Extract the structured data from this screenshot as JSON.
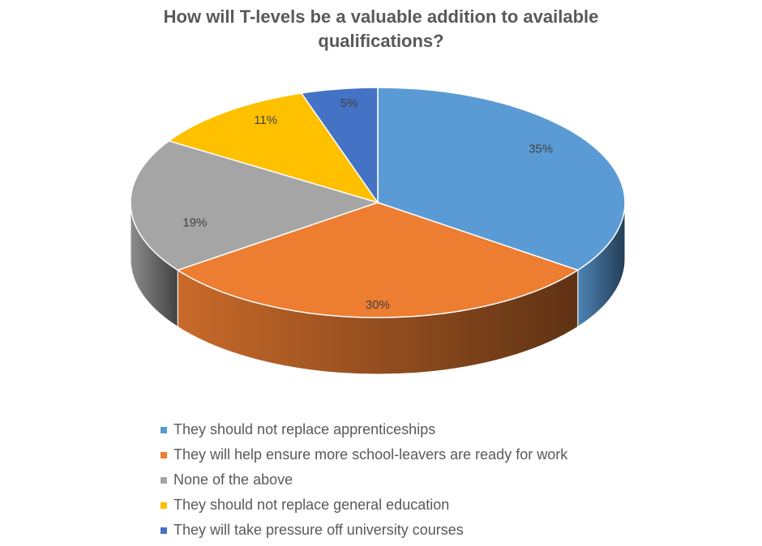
{
  "chart_data": {
    "type": "pie",
    "title": "How will T-levels be a valuable addition to available qualifications?",
    "categories": [
      "They should not replace apprenticeships",
      "They will help ensure more school-leavers are ready for work",
      "None of the above",
      "They should not replace general education",
      "They will take pressure off university courses"
    ],
    "values": [
      35,
      30,
      19,
      11,
      5
    ],
    "value_labels": [
      "35%",
      "30%",
      "19%",
      "11%",
      "5%"
    ],
    "colors": [
      "#5b9bd5",
      "#ed7d31",
      "#a5a5a5",
      "#ffc000",
      "#4472c4"
    ]
  }
}
